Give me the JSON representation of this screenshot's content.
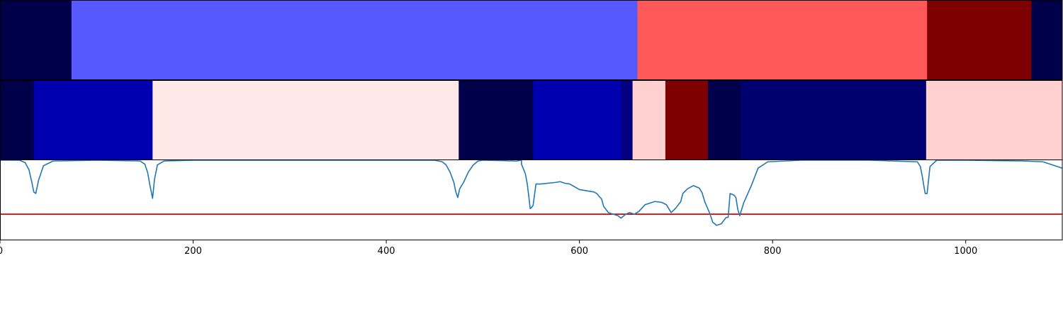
{
  "chart_data": [
    {
      "type": "heatmap",
      "panel": "top-segmentation",
      "segments": [
        {
          "start": 0,
          "end": 74,
          "color": "#00004a"
        },
        {
          "start": 74,
          "end": 660,
          "color": "#5858ff"
        },
        {
          "start": 660,
          "end": 960,
          "color": "#ff5858"
        },
        {
          "start": 960,
          "end": 1068,
          "color": "#7f0000"
        },
        {
          "start": 1068,
          "end": 1100,
          "color": "#00004a"
        }
      ]
    },
    {
      "type": "heatmap",
      "panel": "middle-segmentation",
      "segments": [
        {
          "start": 0,
          "end": 35,
          "color": "#00004a"
        },
        {
          "start": 35,
          "end": 158,
          "color": "#0000b0"
        },
        {
          "start": 158,
          "end": 475,
          "color": "#ffe8e8"
        },
        {
          "start": 475,
          "end": 552,
          "color": "#00004a"
        },
        {
          "start": 552,
          "end": 643,
          "color": "#0000b0"
        },
        {
          "start": 643,
          "end": 655,
          "color": "#000080"
        },
        {
          "start": 655,
          "end": 689,
          "color": "#ffd0d0"
        },
        {
          "start": 689,
          "end": 733,
          "color": "#7f0000"
        },
        {
          "start": 733,
          "end": 767,
          "color": "#00004a"
        },
        {
          "start": 767,
          "end": 959,
          "color": "#000070"
        },
        {
          "start": 959,
          "end": 1100,
          "color": "#ffd0d0"
        }
      ]
    },
    {
      "type": "line",
      "panel": "bottom-signal",
      "xlim": [
        0,
        1100
      ],
      "ylim": [
        0,
        1
      ],
      "threshold": 0.32,
      "threshold_color": "#e00000",
      "line_color": "#1f77b4",
      "xticks": [
        0,
        200,
        400,
        600,
        800,
        1000
      ],
      "x": [
        0,
        20,
        26,
        30,
        33,
        35,
        37,
        40,
        45,
        55,
        100,
        145,
        150,
        153,
        155,
        157,
        158,
        160,
        163,
        170,
        200,
        450,
        458,
        462,
        466,
        470,
        472,
        474,
        476,
        480,
        485,
        490,
        495,
        500,
        540,
        535,
        540,
        544,
        546,
        548,
        549,
        550,
        552,
        555,
        560,
        575,
        580,
        585,
        590,
        600,
        605,
        615,
        618,
        620,
        623,
        625,
        630,
        635,
        640,
        643,
        648,
        652,
        657,
        662,
        668,
        678,
        685,
        690,
        695,
        700,
        705,
        707,
        712,
        718,
        724,
        727,
        730,
        735,
        738,
        742,
        747,
        750,
        752,
        754,
        756,
        760,
        762,
        764,
        766,
        770,
        778,
        785,
        795,
        830,
        900,
        950,
        953,
        955,
        957,
        958,
        960,
        963,
        970,
        1000,
        1060,
        1080,
        1090,
        1100
      ],
      "y": [
        1.0,
        1.0,
        0.97,
        0.88,
        0.72,
        0.6,
        0.58,
        0.75,
        0.93,
        0.99,
        1.0,
        0.99,
        0.95,
        0.84,
        0.7,
        0.58,
        0.52,
        0.76,
        0.94,
        0.99,
        1.0,
        1.0,
        0.98,
        0.94,
        0.85,
        0.72,
        0.6,
        0.53,
        0.64,
        0.72,
        0.85,
        0.94,
        0.99,
        1.0,
        1.0,
        0.99,
        0.95,
        0.83,
        0.7,
        0.5,
        0.39,
        0.4,
        0.43,
        0.7,
        0.7,
        0.72,
        0.73,
        0.71,
        0.7,
        0.63,
        0.62,
        0.6,
        0.58,
        0.55,
        0.51,
        0.42,
        0.34,
        0.32,
        0.3,
        0.27,
        0.32,
        0.34,
        0.32,
        0.36,
        0.44,
        0.48,
        0.47,
        0.44,
        0.34,
        0.4,
        0.48,
        0.58,
        0.64,
        0.68,
        0.65,
        0.59,
        0.47,
        0.33,
        0.22,
        0.18,
        0.2,
        0.25,
        0.28,
        0.28,
        0.58,
        0.56,
        0.53,
        0.38,
        0.3,
        0.46,
        0.68,
        0.9,
        0.98,
        1.0,
        1.0,
        0.98,
        0.92,
        0.8,
        0.65,
        0.58,
        0.58,
        0.92,
        1.0,
        1.0,
        0.99,
        0.98,
        0.94,
        0.9
      ]
    }
  ]
}
